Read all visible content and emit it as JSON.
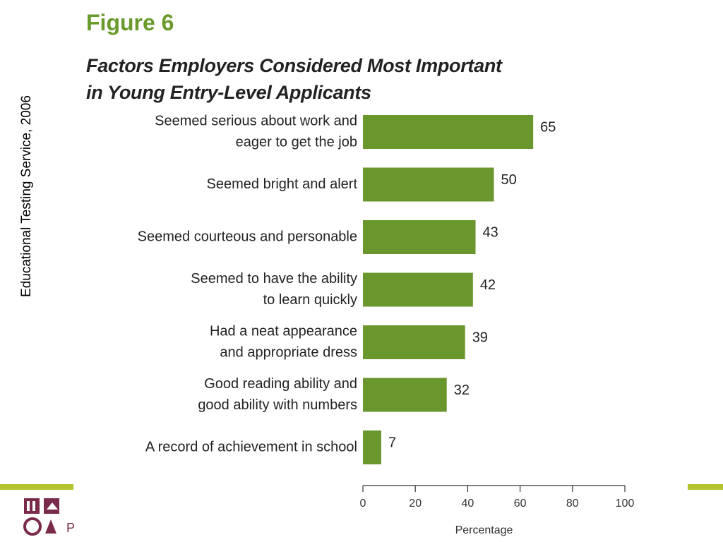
{
  "side_credit": "Educational Testing Service, 2006",
  "figure_label": "Figure 6",
  "figure_title_line1": "Factors Employers Considered Most Important",
  "figure_title_line2": "in Young Entry-Level Applicants",
  "logo_letter": "P",
  "colors": {
    "bar": "#6a962e",
    "accent": "#b5c42c",
    "title": "#6a9a2c",
    "text": "#222222"
  },
  "chart_data": {
    "type": "bar",
    "orientation": "horizontal",
    "categories": [
      [
        "Seemed serious about work and",
        "eager to get the job"
      ],
      [
        "Seemed bright and alert"
      ],
      [
        "Seemed courteous and personable"
      ],
      [
        "Seemed to have the ability",
        "to learn quickly"
      ],
      [
        "Had a neat appearance",
        "and appropriate dress"
      ],
      [
        "Good reading ability and",
        "good ability with numbers"
      ],
      [
        "A record of achievement in school"
      ]
    ],
    "values": [
      65,
      50,
      43,
      42,
      39,
      32,
      7
    ],
    "data_labels": [
      "65",
      "50",
      "43",
      "42",
      "39",
      "32",
      "7"
    ],
    "xlabel": "Percentage",
    "xlim": [
      0,
      100
    ],
    "xticks": [
      0,
      20,
      40,
      60,
      80,
      100
    ],
    "grid": false
  }
}
